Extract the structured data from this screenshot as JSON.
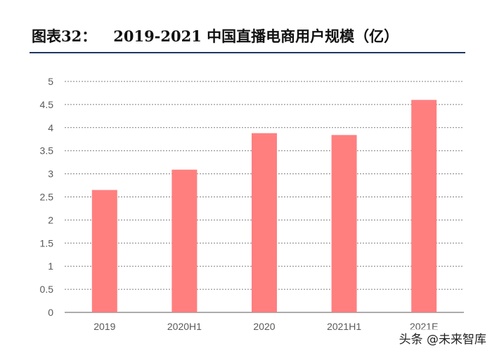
{
  "header": {
    "figure_label": "图表32：",
    "title_text": "2019-2021 中国直播电商用户规模（亿）"
  },
  "watermark": "头条 @未来智库",
  "colors": {
    "bar": "#ff7f7f",
    "grid": "#7f7f7f",
    "axis_text": "#595959",
    "rule": "#1f3864"
  },
  "chart_data": {
    "type": "bar",
    "title": "2019-2021 中国直播电商用户规模（亿）",
    "categories": [
      "2019",
      "2020H1",
      "2020",
      "2021H1",
      "2021E"
    ],
    "values": [
      2.65,
      3.09,
      3.88,
      3.84,
      4.6
    ],
    "ylim": [
      0,
      5
    ],
    "yticks": [
      "0",
      "0.5",
      "1",
      "1.5",
      "2",
      "2.5",
      "3",
      "3.5",
      "4",
      "4.5",
      "5"
    ],
    "xlabel": "",
    "ylabel": "",
    "grid": true,
    "grid_style": "dashed",
    "legend": "none"
  }
}
